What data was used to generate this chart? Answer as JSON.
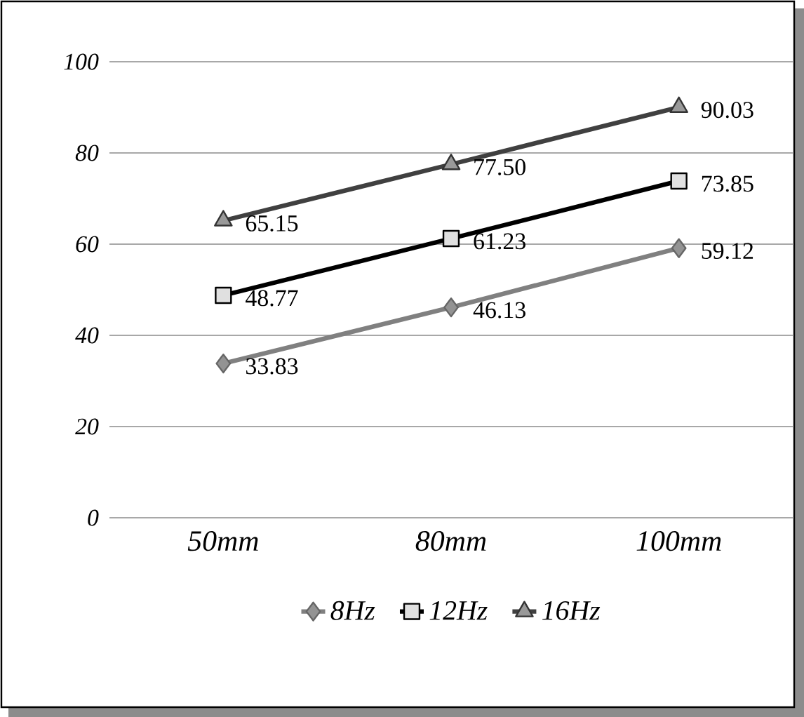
{
  "chart_data": {
    "type": "line",
    "categories": [
      "50mm",
      "80mm",
      "100mm"
    ],
    "series": [
      {
        "name": "8Hz",
        "color": "#808080",
        "marker": "diamond",
        "values": [
          33.83,
          46.13,
          59.12
        ],
        "value_labels": [
          "33.83",
          "46.13",
          "59.12"
        ]
      },
      {
        "name": "12Hz",
        "color": "#000000",
        "marker": "square",
        "values": [
          48.77,
          61.23,
          73.85
        ],
        "value_labels": [
          "48.77",
          "61.23",
          "73.85"
        ]
      },
      {
        "name": "16Hz",
        "color": "#404040",
        "marker": "triangle",
        "values": [
          65.15,
          77.5,
          90.03
        ],
        "value_labels": [
          "65.15",
          "77.50",
          "90.03"
        ]
      }
    ],
    "ylim": [
      0,
      100
    ],
    "yticks": [
      0,
      20,
      40,
      60,
      80,
      100
    ],
    "grid": "y",
    "legend": "bottom"
  }
}
